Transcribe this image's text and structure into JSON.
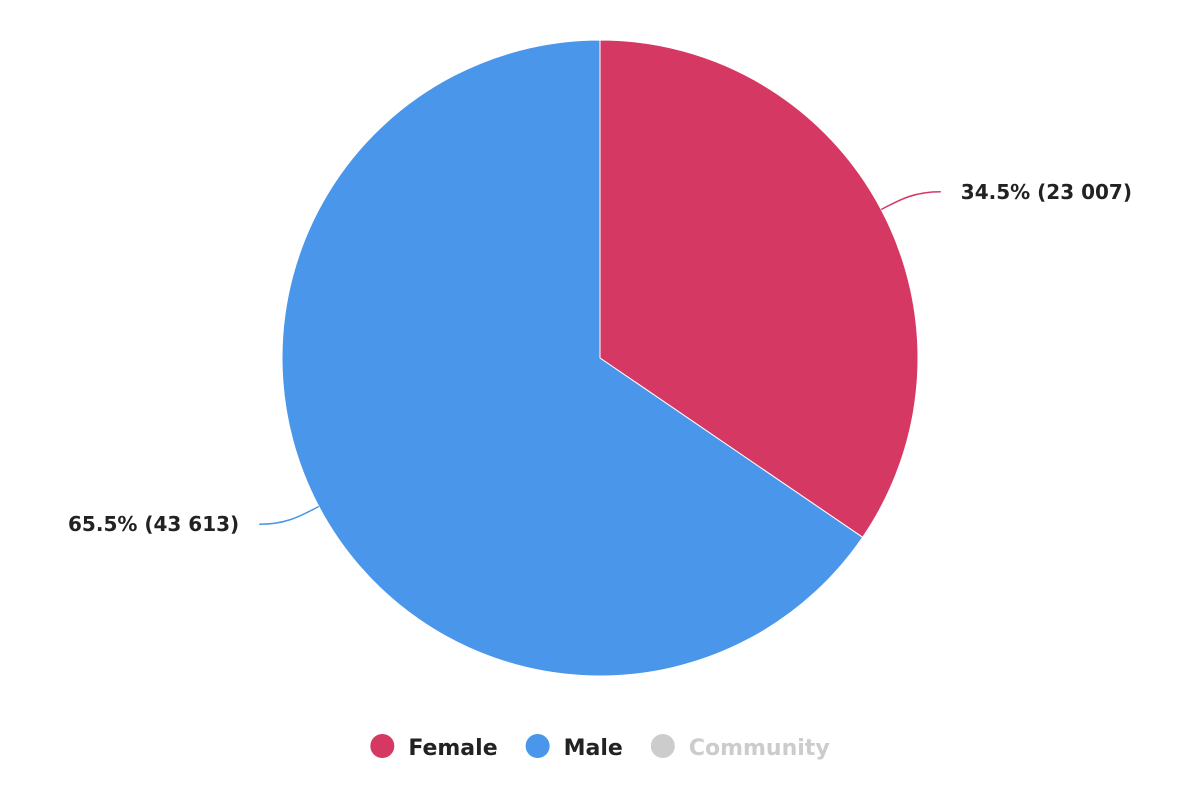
{
  "chart_data": {
    "type": "pie",
    "title": "",
    "series": [
      {
        "name": "",
        "slices": [
          {
            "name": "Female",
            "value": 23007,
            "percent": 34.5,
            "label": "34.5% (23 007)",
            "color": "#d63864"
          },
          {
            "name": "Male",
            "value": 43613,
            "percent": 65.5,
            "label": "65.5% (43 613)",
            "color": "#4996eb"
          },
          {
            "name": "Community",
            "value": 0,
            "percent": 0,
            "label": "",
            "color": "#cccccc",
            "hidden": true
          }
        ]
      }
    ],
    "legend": {
      "placement": "bottom-center",
      "items": [
        {
          "name": "Female",
          "color": "#d63864",
          "text_color": "#222222",
          "active": true
        },
        {
          "name": "Male",
          "color": "#4996eb",
          "text_color": "#222222",
          "active": true
        },
        {
          "name": "Community",
          "color": "#cccccc",
          "text_color": "#cccccc",
          "active": false
        }
      ]
    }
  }
}
